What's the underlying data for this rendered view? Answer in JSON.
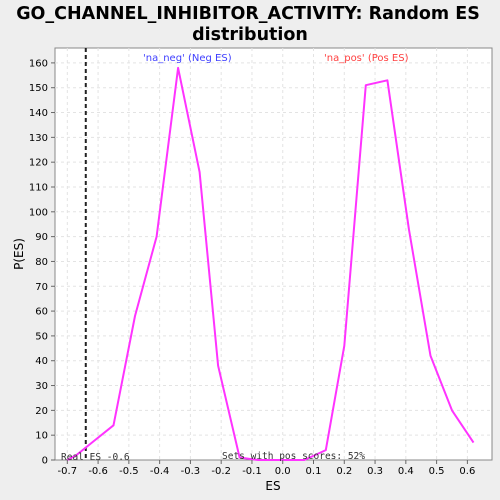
{
  "chart_data": {
    "type": "line",
    "title_line1": "GO_CHANNEL_INHIBITOR_ACTIVITY: Random ES",
    "title_line2": "distribution",
    "xlabel": "ES",
    "ylabel": "P(ES)",
    "xlim": [
      -0.74,
      0.68
    ],
    "ylim": [
      0,
      166
    ],
    "x_ticks": [
      -0.7,
      -0.6,
      -0.5,
      -0.4,
      -0.3,
      -0.2,
      -0.1,
      0.0,
      0.1,
      0.2,
      0.3,
      0.4,
      0.5,
      0.6
    ],
    "x_tick_labels": [
      "-0.7",
      "-0.6",
      "-0.5",
      "-0.4",
      "-0.3",
      "-0.2",
      "-0.1",
      "0.0",
      "0.1",
      "0.2",
      "0.3",
      "0.4",
      "0.5",
      "0.6"
    ],
    "y_ticks": [
      0,
      10,
      20,
      30,
      40,
      50,
      60,
      70,
      80,
      90,
      100,
      110,
      120,
      130,
      140,
      150,
      160
    ],
    "y_tick_labels": [
      "0",
      "10",
      "20",
      "30",
      "40",
      "50",
      "60",
      "70",
      "80",
      "90",
      "100",
      "110",
      "120",
      "130",
      "140",
      "150",
      "160"
    ],
    "grid": true,
    "series": [
      {
        "color": "#ff33ff",
        "x": [
          -0.7,
          -0.67,
          -0.62,
          -0.55,
          -0.48,
          -0.41,
          -0.34,
          -0.27,
          -0.21,
          -0.14,
          -0.08,
          0.0,
          0.07,
          0.14,
          0.2,
          0.27,
          0.34,
          0.41,
          0.48,
          0.55,
          0.62
        ],
        "y": [
          0,
          2,
          7,
          14,
          58,
          90,
          158,
          116,
          38,
          1,
          0,
          0,
          0,
          4,
          46,
          151,
          153,
          93,
          42,
          20,
          7
        ]
      }
    ],
    "real_es": -0.64,
    "annotations": {
      "neg_label": "'na_neg' (Neg ES)",
      "neg_color": "#4040ff",
      "pos_label": "'na_pos' (Pos ES)",
      "pos_color": "#ff4040",
      "real_es_label": "Real ES -0.6",
      "pos_scores_label": "Sets with pos scores: 52%"
    }
  }
}
